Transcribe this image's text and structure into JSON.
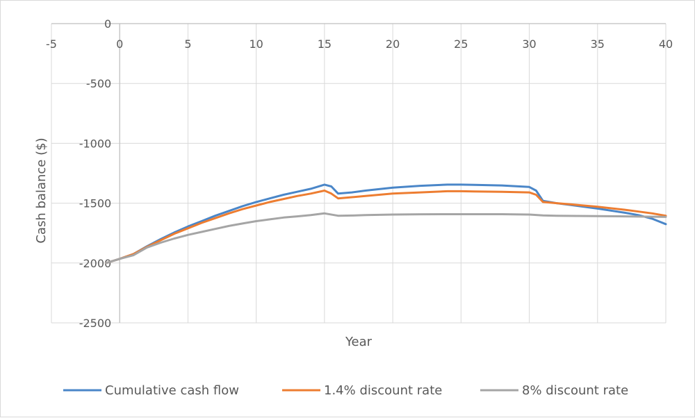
{
  "chart_data": {
    "type": "line",
    "title": "",
    "xlabel": "Year",
    "ylabel": "Cash balance ($)",
    "xlim": [
      -5,
      40
    ],
    "ylim": [
      -2500,
      0
    ],
    "x_ticks": [
      -5,
      0,
      5,
      10,
      15,
      20,
      25,
      30,
      35,
      40
    ],
    "y_ticks": [
      0,
      -500,
      -1000,
      -1500,
      -2000,
      -2500
    ],
    "x_axis_crosses_at": 0,
    "y_axis_crosses_at": 0,
    "grid": true,
    "legend_position": "bottom",
    "series": [
      {
        "name": "Cumulative cash flow",
        "color": "#4a86c8",
        "points": [
          [
            -1,
            -2000
          ],
          [
            0,
            -1965
          ],
          [
            1,
            -1925
          ],
          [
            2,
            -1860
          ],
          [
            3,
            -1800
          ],
          [
            4,
            -1745
          ],
          [
            5,
            -1695
          ],
          [
            6,
            -1650
          ],
          [
            7,
            -1605
          ],
          [
            8,
            -1565
          ],
          [
            9,
            -1525
          ],
          [
            10,
            -1490
          ],
          [
            11,
            -1460
          ],
          [
            12,
            -1430
          ],
          [
            13,
            -1405
          ],
          [
            14,
            -1380
          ],
          [
            15,
            -1345
          ],
          [
            15.5,
            -1360
          ],
          [
            16,
            -1420
          ],
          [
            17,
            -1410
          ],
          [
            18,
            -1395
          ],
          [
            20,
            -1370
          ],
          [
            22,
            -1355
          ],
          [
            24,
            -1345
          ],
          [
            25,
            -1345
          ],
          [
            26,
            -1347
          ],
          [
            28,
            -1352
          ],
          [
            30,
            -1365
          ],
          [
            30.5,
            -1395
          ],
          [
            31,
            -1480
          ],
          [
            32,
            -1500
          ],
          [
            33,
            -1515
          ],
          [
            35,
            -1545
          ],
          [
            37,
            -1580
          ],
          [
            38,
            -1600
          ],
          [
            39,
            -1630
          ],
          [
            40,
            -1675
          ]
        ]
      },
      {
        "name": "1.4% discount rate",
        "color": "#ed7d31",
        "points": [
          [
            -1,
            -2000
          ],
          [
            0,
            -1965
          ],
          [
            1,
            -1925
          ],
          [
            2,
            -1865
          ],
          [
            3,
            -1810
          ],
          [
            4,
            -1755
          ],
          [
            5,
            -1710
          ],
          [
            6,
            -1665
          ],
          [
            7,
            -1625
          ],
          [
            8,
            -1585
          ],
          [
            9,
            -1550
          ],
          [
            10,
            -1520
          ],
          [
            11,
            -1490
          ],
          [
            12,
            -1465
          ],
          [
            13,
            -1440
          ],
          [
            14,
            -1420
          ],
          [
            15,
            -1395
          ],
          [
            15.5,
            -1420
          ],
          [
            16,
            -1460
          ],
          [
            17,
            -1450
          ],
          [
            18,
            -1440
          ],
          [
            20,
            -1420
          ],
          [
            22,
            -1410
          ],
          [
            24,
            -1400
          ],
          [
            25,
            -1400
          ],
          [
            26,
            -1402
          ],
          [
            28,
            -1405
          ],
          [
            30,
            -1410
          ],
          [
            30.5,
            -1430
          ],
          [
            31,
            -1490
          ],
          [
            32,
            -1500
          ],
          [
            33,
            -1510
          ],
          [
            35,
            -1530
          ],
          [
            37,
            -1555
          ],
          [
            38,
            -1570
          ],
          [
            39,
            -1585
          ],
          [
            40,
            -1605
          ]
        ]
      },
      {
        "name": "8% discount rate",
        "color": "#a5a5a5",
        "points": [
          [
            -1,
            -2000
          ],
          [
            0,
            -1965
          ],
          [
            1,
            -1935
          ],
          [
            2,
            -1870
          ],
          [
            3,
            -1830
          ],
          [
            4,
            -1795
          ],
          [
            5,
            -1765
          ],
          [
            6,
            -1740
          ],
          [
            7,
            -1715
          ],
          [
            8,
            -1690
          ],
          [
            9,
            -1670
          ],
          [
            10,
            -1650
          ],
          [
            11,
            -1635
          ],
          [
            12,
            -1620
          ],
          [
            13,
            -1610
          ],
          [
            14,
            -1600
          ],
          [
            15,
            -1585
          ],
          [
            16,
            -1605
          ],
          [
            17,
            -1603
          ],
          [
            18,
            -1600
          ],
          [
            20,
            -1595
          ],
          [
            22,
            -1593
          ],
          [
            25,
            -1592
          ],
          [
            28,
            -1592
          ],
          [
            30,
            -1595
          ],
          [
            31,
            -1602
          ],
          [
            32,
            -1605
          ],
          [
            35,
            -1608
          ],
          [
            38,
            -1612
          ],
          [
            40,
            -1615
          ]
        ]
      }
    ]
  }
}
